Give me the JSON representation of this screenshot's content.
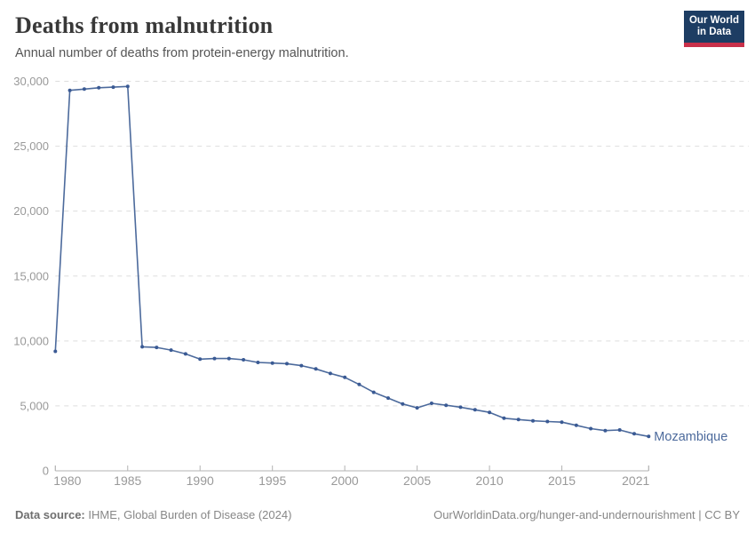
{
  "header": {
    "title": "Deaths from malnutrition",
    "subtitle": "Annual number of deaths from protein-energy malnutrition.",
    "logo": {
      "line1": "Our World",
      "line2": "in Data",
      "bg_color": "#1d3d63",
      "bar_color": "#c9304a"
    }
  },
  "chart_data": {
    "type": "line",
    "title": "Deaths from malnutrition",
    "xlabel": "",
    "ylabel": "",
    "xlim": [
      1980,
      2021
    ],
    "ylim": [
      0,
      30000
    ],
    "grid": "horizontal-dashed",
    "legend_position": "end-of-line",
    "x_ticks": [
      1980,
      1985,
      1990,
      1995,
      2000,
      2005,
      2010,
      2015,
      2021
    ],
    "y_ticks": [
      0,
      5000,
      10000,
      15000,
      20000,
      25000,
      30000
    ],
    "series": [
      {
        "name": "Mozambique",
        "color": "#4c6a9c",
        "marker_color": "#3a5a94",
        "x": [
          1980,
          1981,
          1982,
          1983,
          1984,
          1985,
          1986,
          1987,
          1988,
          1989,
          1990,
          1991,
          1992,
          1993,
          1994,
          1995,
          1996,
          1997,
          1998,
          1999,
          2000,
          2001,
          2002,
          2003,
          2004,
          2005,
          2006,
          2007,
          2008,
          2009,
          2010,
          2011,
          2012,
          2013,
          2014,
          2015,
          2016,
          2017,
          2018,
          2019,
          2020,
          2021
        ],
        "values": [
          9200,
          29300,
          29400,
          29500,
          29550,
          29600,
          9550,
          9500,
          9300,
          9000,
          8600,
          8650,
          8650,
          8550,
          8350,
          8300,
          8250,
          8100,
          7850,
          7500,
          7200,
          6650,
          6050,
          5600,
          5150,
          4850,
          5200,
          5050,
          4900,
          4700,
          4500,
          4050,
          3950,
          3850,
          3800,
          3750,
          3500,
          3250,
          3100,
          3150,
          2850,
          2650
        ]
      }
    ],
    "colors": {
      "gridline": "#dddddd",
      "axis_line": "#b3b3b3",
      "tick_label": "#999999"
    }
  },
  "footer": {
    "source_label": "Data source:",
    "source_text": " IHME, Global Burden of Disease (2024)",
    "link_text": "OurWorldinData.org/hunger-and-undernourishment | CC BY"
  }
}
